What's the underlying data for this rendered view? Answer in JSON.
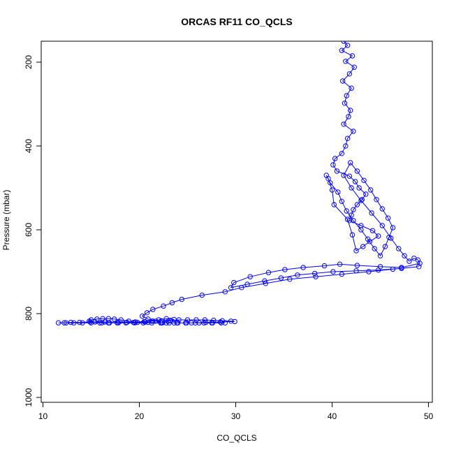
{
  "chart_data": {
    "type": "line",
    "title": "ORCAS RF11 CO_QCLS",
    "xlabel": "CO_QCLS",
    "ylabel": "Pressure (mbar)",
    "xlim": [
      10,
      50
    ],
    "ylim": [
      1000,
      150
    ],
    "y_reversed": true,
    "grid": false,
    "x_ticks": [
      10,
      20,
      30,
      40,
      50
    ],
    "y_ticks": [
      200,
      400,
      600,
      800,
      1000
    ],
    "marker": "open-circle",
    "color": "#0000ff",
    "series": [
      {
        "x": [
          41.2,
          41.6,
          41.0,
          42.1,
          41.4,
          42.3,
          41.8,
          41.1,
          42.0,
          41.5,
          41.3,
          41.9,
          41.7,
          41.2,
          42.2,
          41.6,
          41.4,
          41.0,
          40.3,
          40.1,
          40.5,
          41.8,
          42.4,
          42.8,
          43.5,
          43.1,
          42.6,
          42.2,
          42.0,
          41.8,
          43.0,
          44.2,
          44.8,
          43.9,
          43.2,
          42.5,
          42.1,
          41.6,
          40.2,
          40.0,
          39.6,
          39.4,
          39.8,
          40.6,
          41.0,
          41.5,
          42.2,
          43.0,
          43.7,
          44.4,
          45.0,
          45.5,
          45.9,
          46.3,
          45.8,
          45.2,
          44.6,
          44.0,
          43.3,
          42.6,
          41.9,
          41.2,
          42.0,
          43.0,
          44.1,
          45.2,
          46.1,
          46.9,
          47.5,
          48.0,
          48.5,
          48.9,
          49.1,
          47.2,
          45.0,
          42.6,
          40.8,
          39.2,
          37.0,
          35.1,
          33.4,
          31.5,
          29.8,
          29.5,
          31.2,
          33.0,
          34.7,
          36.4,
          38.2,
          40.1,
          42.5,
          44.8,
          47.2,
          49.0,
          46.3,
          43.8,
          41.0,
          38.3,
          35.6,
          33.1,
          30.6,
          28.9,
          26.5,
          24.4,
          23.4,
          22.5,
          21.4,
          20.8,
          20.3,
          20.9,
          21.7,
          22.3,
          23.0,
          23.6,
          22.8,
          22.0,
          21.3,
          20.6,
          19.8,
          18.9,
          18.1,
          17.4,
          16.8,
          16.2,
          15.6,
          15.0,
          14.8,
          15.4,
          16.1,
          16.9,
          17.8,
          18.7,
          19.6,
          20.5,
          21.4,
          22.3,
          23.2,
          24.1,
          25.0,
          25.9,
          26.8,
          27.7,
          28.6,
          29.5,
          29.9,
          28.4,
          26.9,
          25.4,
          23.9,
          22.4,
          20.9,
          19.4,
          17.9,
          16.4,
          14.9,
          13.8,
          12.9,
          12.2,
          11.6,
          12.4,
          13.2,
          14.1,
          15.0,
          15.9,
          16.8,
          17.7,
          18.6,
          19.5,
          20.4,
          21.3,
          22.2,
          23.1,
          24.0,
          24.9,
          25.8,
          26.7,
          27.6,
          28.5,
          28.9,
          27.5,
          26.2,
          24.8,
          23.6,
          22.8
        ],
        "y": [
          150,
          160,
          172,
          185,
          198,
          212,
          228,
          245,
          262,
          280,
          298,
          315,
          330,
          348,
          365,
          382,
          400,
          418,
          430,
          445,
          460,
          472,
          485,
          500,
          515,
          528,
          540,
          552,
          565,
          578,
          590,
          602,
          615,
          628,
          640,
          650,
          612,
          575,
          540,
          505,
          478,
          470,
          488,
          510,
          532,
          555,
          578,
          600,
          622,
          645,
          662,
          640,
          618,
          595,
          572,
          550,
          528,
          505,
          482,
          460,
          440,
          470,
          500,
          530,
          560,
          590,
          620,
          645,
          662,
          675,
          668,
          672,
          680,
          690,
          688,
          685,
          682,
          686,
          690,
          695,
          702,
          712,
          726,
          738,
          730,
          722,
          715,
          708,
          704,
          700,
          698,
          696,
          692,
          688,
          694,
          700,
          706,
          712,
          718,
          728,
          738,
          748,
          756,
          766,
          774,
          782,
          790,
          798,
          806,
          813,
          818,
          822,
          818,
          814,
          812,
          815,
          818,
          820,
          821,
          818,
          815,
          813,
          812,
          812,
          813,
          815,
          818,
          820,
          822,
          822,
          822,
          821,
          820,
          819,
          818,
          817,
          816,
          815,
          815,
          815,
          815,
          816,
          817,
          818,
          819,
          820,
          821,
          822,
          822,
          822,
          821,
          821,
          820,
          820,
          820,
          821,
          821,
          822,
          822,
          822,
          822,
          822,
          822,
          822,
          822,
          822,
          822,
          822,
          822,
          822,
          822,
          822,
          822,
          822,
          822,
          822,
          822,
          822,
          822,
          822,
          822,
          822,
          822,
          822
        ]
      }
    ]
  }
}
